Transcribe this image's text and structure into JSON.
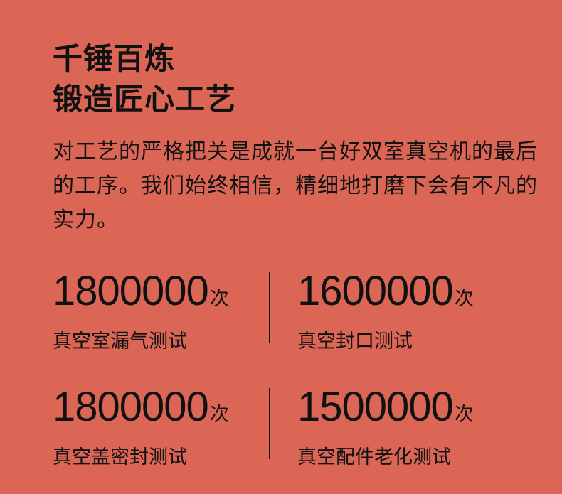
{
  "title": {
    "line1": "千锤百炼",
    "line2": "锻造匠心工艺"
  },
  "paragraph": "对工艺的严格把关是成就一台好双室真空机的最后的工序。我们始终相信，精细地打磨下会有不凡的实力。",
  "stats": [
    {
      "value": "1800000",
      "unit": "次",
      "label": "真空室漏气测试"
    },
    {
      "value": "1600000",
      "unit": "次",
      "label": "真空封口测试"
    },
    {
      "value": "1800000",
      "unit": "次",
      "label": "真空盖密封测试"
    },
    {
      "value": "1500000",
      "unit": "次",
      "label": "真空配件老化测试"
    }
  ],
  "colors": {
    "background": "#DB6656",
    "text": "#111111"
  }
}
